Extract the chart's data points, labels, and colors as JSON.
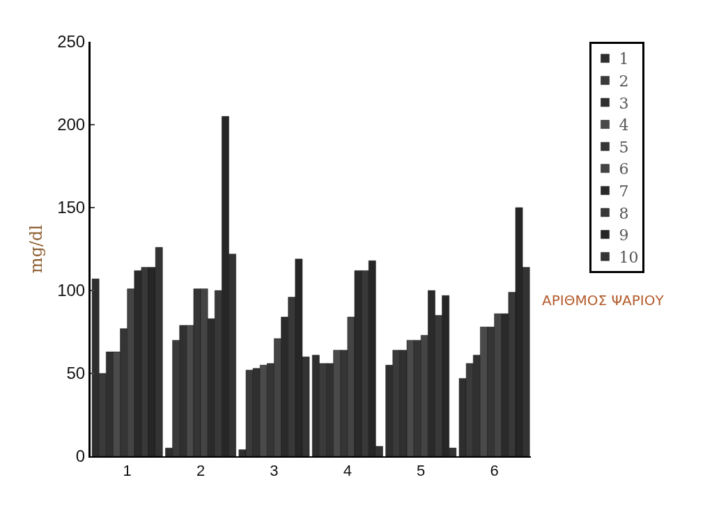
{
  "chart_data": {
    "type": "bar",
    "ylabel": "mg/dl",
    "legend_title": "ΑΡΙΘΜΟΣ ΨΑΡΙΟΥ",
    "categories": [
      "1",
      "2",
      "3",
      "4",
      "5",
      "6"
    ],
    "series": [
      {
        "name": "1",
        "color": "#2e2e2e",
        "values": [
          107,
          5,
          4,
          61,
          55,
          47
        ]
      },
      {
        "name": "2",
        "color": "#3a3a3a",
        "values": [
          50,
          70,
          52,
          56,
          64,
          56
        ]
      },
      {
        "name": "3",
        "color": "#303030",
        "values": [
          63,
          79,
          53,
          56,
          64,
          61
        ]
      },
      {
        "name": "4",
        "color": "#4a4a4a",
        "values": [
          63,
          79,
          55,
          64,
          70,
          78
        ]
      },
      {
        "name": "5",
        "color": "#353535",
        "values": [
          77,
          101,
          56,
          64,
          70,
          78
        ]
      },
      {
        "name": "6",
        "color": "#444444",
        "values": [
          101,
          101,
          71,
          84,
          73,
          86
        ]
      },
      {
        "name": "7",
        "color": "#2a2a2a",
        "values": [
          112,
          83,
          84,
          112,
          100,
          86
        ]
      },
      {
        "name": "8",
        "color": "#383838",
        "values": [
          114,
          100,
          96,
          112,
          85,
          99
        ]
      },
      {
        "name": "9",
        "color": "#262626",
        "values": [
          114,
          205,
          119,
          118,
          97,
          150
        ]
      },
      {
        "name": "10",
        "color": "#333333",
        "values": [
          126,
          122,
          60,
          6,
          5,
          114
        ]
      }
    ],
    "ylim": [
      0,
      250
    ],
    "yticks": [
      0,
      50,
      100,
      150,
      200,
      250
    ],
    "legend": "right"
  }
}
